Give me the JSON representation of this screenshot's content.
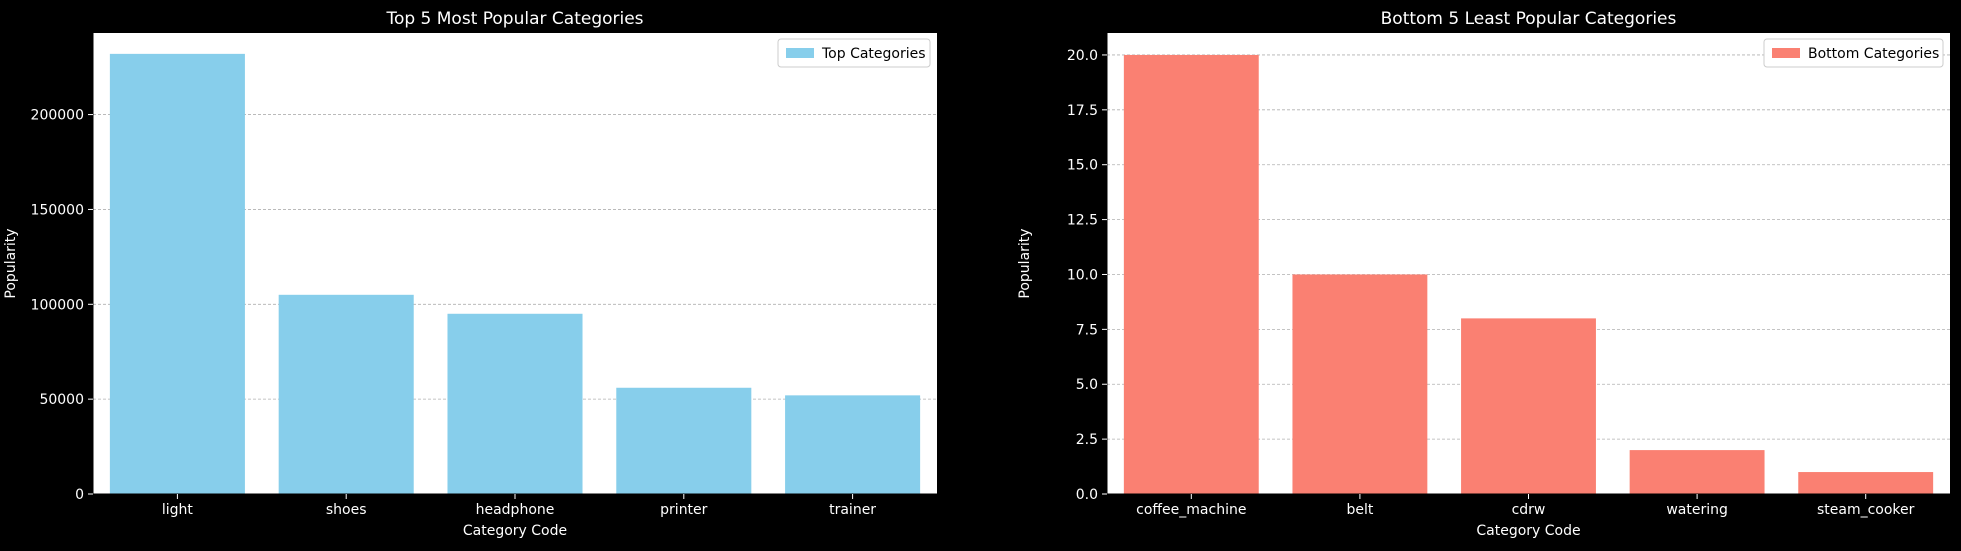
{
  "chart_data": [
    {
      "type": "bar",
      "title": "Top 5 Most Popular Categories",
      "xlabel": "Category Code",
      "ylabel": "Popularity",
      "categories": [
        "light",
        "shoes",
        "headphone",
        "printer",
        "trainer"
      ],
      "series": [
        {
          "name": "Top Categories",
          "values": [
            232000,
            105000,
            95000,
            56000,
            52000
          ],
          "color": "#87CEEB"
        }
      ],
      "ylim": [
        0,
        243000
      ],
      "yticks": [
        0,
        50000,
        100000,
        150000,
        200000
      ],
      "ytick_labels": [
        "0",
        "50000",
        "100000",
        "150000",
        "200000"
      ],
      "grid": "y-dashed",
      "legend": "top-right"
    },
    {
      "type": "bar",
      "title": "Bottom 5 Least Popular Categories",
      "xlabel": "Category Code",
      "ylabel": "Popularity",
      "categories": [
        "coffee_machine",
        "belt",
        "cdrw",
        "watering",
        "steam_cooker"
      ],
      "series": [
        {
          "name": "Bottom Categories",
          "values": [
            20,
            10,
            8,
            2,
            1
          ],
          "color": "#FA8072"
        }
      ],
      "ylim": [
        0,
        21
      ],
      "yticks": [
        0,
        2.5,
        5,
        7.5,
        10,
        12.5,
        15,
        17.5,
        20
      ],
      "ytick_labels": [
        "0.0",
        "2.5",
        "5.0",
        "7.5",
        "10.0",
        "12.5",
        "15.0",
        "17.5",
        "20.0"
      ],
      "grid": "y-dashed",
      "legend": "top-right"
    }
  ],
  "colors": {
    "background": "#000000",
    "plot_area": "#FFFFFF",
    "text": "#FFFFFF",
    "grid": "#B0B0B0"
  }
}
